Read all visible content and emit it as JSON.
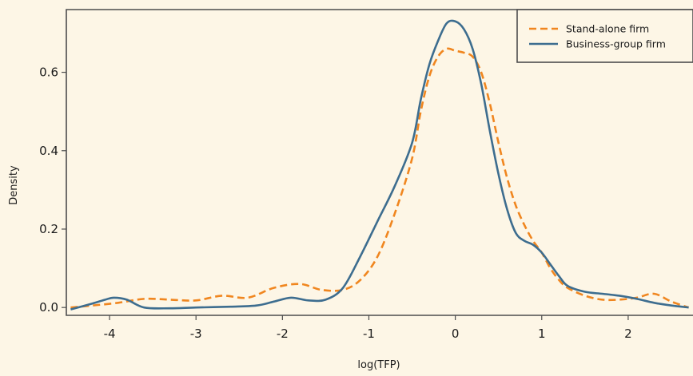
{
  "chart_data": {
    "type": "line",
    "title": "",
    "xlabel": "log(TFP)",
    "ylabel": "Density",
    "xlim": [
      -4.5,
      2.75
    ],
    "ylim": [
      -0.02,
      0.76
    ],
    "x_ticks": [
      -4,
      -3,
      -2,
      -1,
      0,
      1,
      2
    ],
    "x_tick_labels": [
      "-4",
      "-3",
      "-2",
      "-1",
      "0",
      "1",
      "2"
    ],
    "y_ticks": [
      0.0,
      0.2,
      0.4,
      0.6
    ],
    "y_tick_labels": [
      "0.0",
      "0.2",
      "0.4",
      "0.6"
    ],
    "grid": false,
    "legend_position": "top-right",
    "colors": {
      "background": "#fdf6e6",
      "axis": "#4d4d4d"
    },
    "series": [
      {
        "name": "Stand-alone firm",
        "color": "#f0861f",
        "dash": "dashed",
        "x": [
          -4.45,
          -4.2,
          -3.9,
          -3.6,
          -3.3,
          -3.0,
          -2.7,
          -2.4,
          -2.1,
          -1.8,
          -1.55,
          -1.3,
          -1.1,
          -0.9,
          -0.7,
          -0.5,
          -0.4,
          -0.3,
          -0.2,
          -0.1,
          0.0,
          0.1,
          0.2,
          0.3,
          0.4,
          0.5,
          0.6,
          0.7,
          0.8,
          0.9,
          1.0,
          1.1,
          1.2,
          1.3,
          1.5,
          1.7,
          1.9,
          2.1,
          2.3,
          2.5,
          2.7
        ],
        "y": [
          0.0,
          0.005,
          0.012,
          0.022,
          0.02,
          0.018,
          0.03,
          0.025,
          0.05,
          0.06,
          0.045,
          0.045,
          0.07,
          0.13,
          0.24,
          0.38,
          0.5,
          0.59,
          0.64,
          0.66,
          0.655,
          0.65,
          0.64,
          0.6,
          0.52,
          0.42,
          0.33,
          0.26,
          0.21,
          0.17,
          0.14,
          0.1,
          0.07,
          0.05,
          0.03,
          0.02,
          0.02,
          0.025,
          0.035,
          0.015,
          0.0
        ]
      },
      {
        "name": "Business-group firm",
        "color": "#3d6d8f",
        "dash": "solid",
        "x": [
          -4.45,
          -4.2,
          -4.05,
          -3.95,
          -3.8,
          -3.6,
          -3.3,
          -3.0,
          -2.6,
          -2.3,
          -2.1,
          -1.9,
          -1.7,
          -1.5,
          -1.3,
          -1.1,
          -0.9,
          -0.7,
          -0.5,
          -0.4,
          -0.3,
          -0.2,
          -0.1,
          0.0,
          0.1,
          0.2,
          0.3,
          0.4,
          0.5,
          0.6,
          0.7,
          0.8,
          0.9,
          1.0,
          1.1,
          1.2,
          1.3,
          1.5,
          1.7,
          1.9,
          2.1,
          2.3,
          2.5,
          2.7
        ],
        "y": [
          -0.005,
          0.01,
          0.02,
          0.025,
          0.02,
          0.0,
          -0.002,
          0.0,
          0.002,
          0.005,
          0.015,
          0.025,
          0.018,
          0.02,
          0.05,
          0.13,
          0.22,
          0.31,
          0.42,
          0.53,
          0.62,
          0.68,
          0.725,
          0.73,
          0.71,
          0.66,
          0.57,
          0.45,
          0.34,
          0.25,
          0.19,
          0.17,
          0.16,
          0.14,
          0.11,
          0.08,
          0.055,
          0.04,
          0.035,
          0.03,
          0.022,
          0.012,
          0.005,
          0.0
        ]
      }
    ]
  }
}
